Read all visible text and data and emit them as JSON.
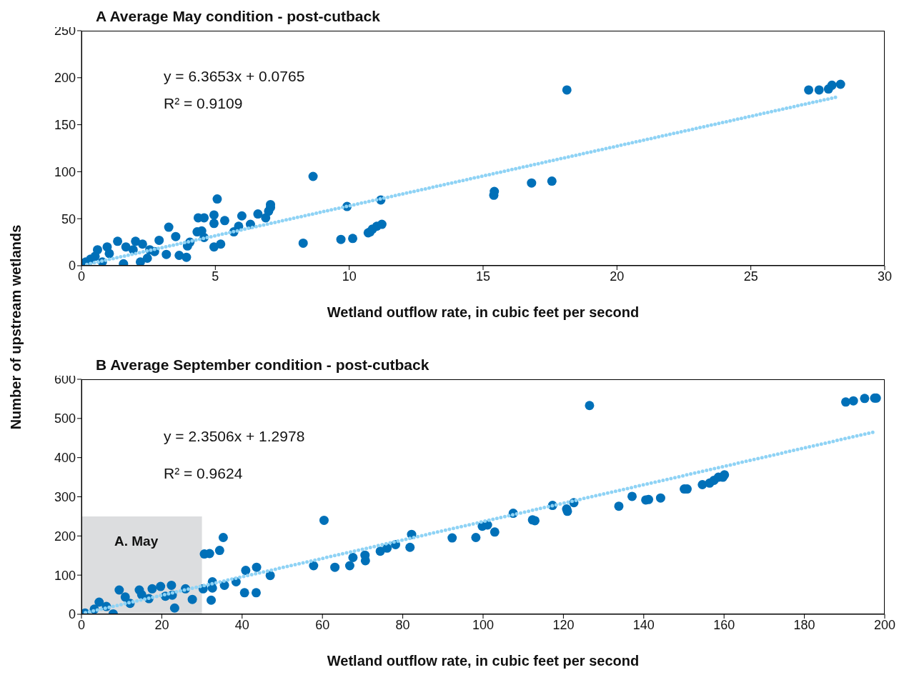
{
  "chart_data": [
    {
      "type": "scatter",
      "title": "A Average May condition - post-cutback",
      "xlabel": "Wetland outflow rate, in cubic feet per second",
      "ylabel": "Number of upstream wetlands",
      "xlim": [
        0,
        30
      ],
      "ylim": [
        0,
        250
      ],
      "xticks": [
        0,
        5,
        10,
        15,
        20,
        25,
        30
      ],
      "yticks": [
        0,
        50,
        100,
        150,
        200,
        250
      ],
      "marker": "circle",
      "series": [
        {
          "color": "#0070b8",
          "x": [
            0.16,
            0.34,
            0.51,
            0.6,
            0.78,
            0.96,
            1.04,
            1.35,
            1.57,
            1.66,
            1.93,
            2.02,
            2.2,
            2.28,
            2.46,
            2.55,
            2.73,
            2.9,
            3.17,
            3.26,
            3.52,
            3.65,
            3.92,
            3.96,
            4.05,
            4.32,
            4.36,
            4.49,
            4.58,
            4.58,
            4.95,
            4.95,
            4.95,
            5.07,
            5.2,
            5.35,
            5.69,
            5.87,
            5.99,
            6.31,
            6.59,
            6.88,
            6.99,
            7.06,
            7.06,
            8.28,
            8.65,
            9.69,
            9.92,
            10.13,
            10.71,
            10.78,
            10.87,
            11.03,
            11.18,
            11.22,
            15.4,
            15.42,
            16.81,
            17.57,
            18.13,
            27.16,
            27.55,
            27.9,
            28.03,
            28.35
          ],
          "values": [
            4,
            7,
            10,
            17,
            4,
            20,
            13,
            26,
            2,
            20,
            17,
            26,
            4,
            23,
            8,
            17,
            15,
            27,
            12,
            41,
            31,
            11,
            9,
            21,
            25,
            36,
            51,
            37,
            51,
            30,
            54,
            45,
            20,
            71,
            23,
            48,
            36,
            42,
            53,
            44,
            55,
            51,
            58,
            62,
            65,
            24,
            95,
            28,
            63,
            29,
            35,
            36,
            39,
            42,
            70,
            44,
            75,
            79,
            88,
            90,
            187,
            187,
            187,
            188,
            192,
            193
          ]
        },
        {
          "type": "line",
          "color": "#8fd3f5",
          "marker": "none",
          "line_style": "dotted",
          "x": [
            0.2,
            28.3
          ],
          "values": [
            1.4,
            180
          ]
        }
      ],
      "annotations": [
        "y = 6.3653x + 0.0765",
        "R² = 0.9109"
      ]
    },
    {
      "type": "scatter",
      "title": "B Average September condition - post-cutback",
      "xlabel": "Wetland outflow rate, in cubic feet per second",
      "xlim": [
        0,
        200
      ],
      "ylim": [
        0,
        600
      ],
      "xticks": [
        0,
        20,
        40,
        60,
        80,
        100,
        120,
        140,
        160,
        180,
        200
      ],
      "yticks": [
        0,
        100,
        200,
        300,
        400,
        500,
        600
      ],
      "marker": "circle",
      "series": [
        {
          "color": "#0070b8",
          "x": [
            0.9,
            3.2,
            4.4,
            6.2,
            7.9,
            9.4,
            10.9,
            12.1,
            14.4,
            15,
            16.8,
            17.6,
            19.7,
            20.9,
            22.4,
            22.6,
            23.2,
            25.9,
            27.6,
            30.3,
            30.6,
            31.9,
            32.3,
            32.6,
            32.6,
            34.4,
            35.3,
            35.6,
            38.5,
            40.6,
            40.9,
            43.5,
            43.6,
            47,
            57.8,
            60.4,
            63.1,
            66.8,
            67.6,
            70.6,
            70.7,
            74.4,
            76.1,
            78.2,
            81.8,
            82.2,
            92.3,
            98.2,
            99.8,
            101.1,
            102.9,
            107.5,
            112.3,
            112.9,
            117.3,
            120.8,
            121,
            122.6,
            126.5,
            133.8,
            137.1,
            140.5,
            141.2,
            144.2,
            150.1,
            150.8,
            154.6,
            156.4,
            157.5,
            158.6,
            159.7,
            160.1,
            190.3,
            192.2,
            195,
            197.5,
            197.9
          ],
          "values": [
            3,
            13,
            31,
            20,
            1,
            62,
            44,
            28,
            62,
            50,
            40,
            65,
            71,
            46,
            74,
            49,
            16,
            65,
            38,
            65,
            154,
            155,
            36,
            67,
            83,
            163,
            196,
            74,
            83,
            55,
            112,
            55,
            120,
            99,
            124,
            240,
            120,
            124,
            145,
            151,
            137,
            161,
            169,
            178,
            171,
            204,
            195,
            196,
            225,
            228,
            210,
            258,
            241,
            239,
            278,
            269,
            263,
            285,
            533,
            276,
            301,
            292,
            293,
            297,
            320,
            320,
            331,
            335,
            342,
            350,
            350,
            356,
            542,
            545,
            551,
            552,
            552
          ]
        },
        {
          "type": "line",
          "color": "#8fd3f5",
          "marker": "none",
          "line_style": "dotted",
          "x": [
            1,
            198
          ],
          "values": [
            4,
            467
          ]
        }
      ],
      "bands": [
        {
          "axis": "x",
          "from": 0,
          "to": 30,
          "label": "A. May",
          "color": "#dcdddf"
        }
      ],
      "annotations": [
        "y = 2.3506x + 1.2978",
        "R² = 0.9624"
      ]
    }
  ]
}
